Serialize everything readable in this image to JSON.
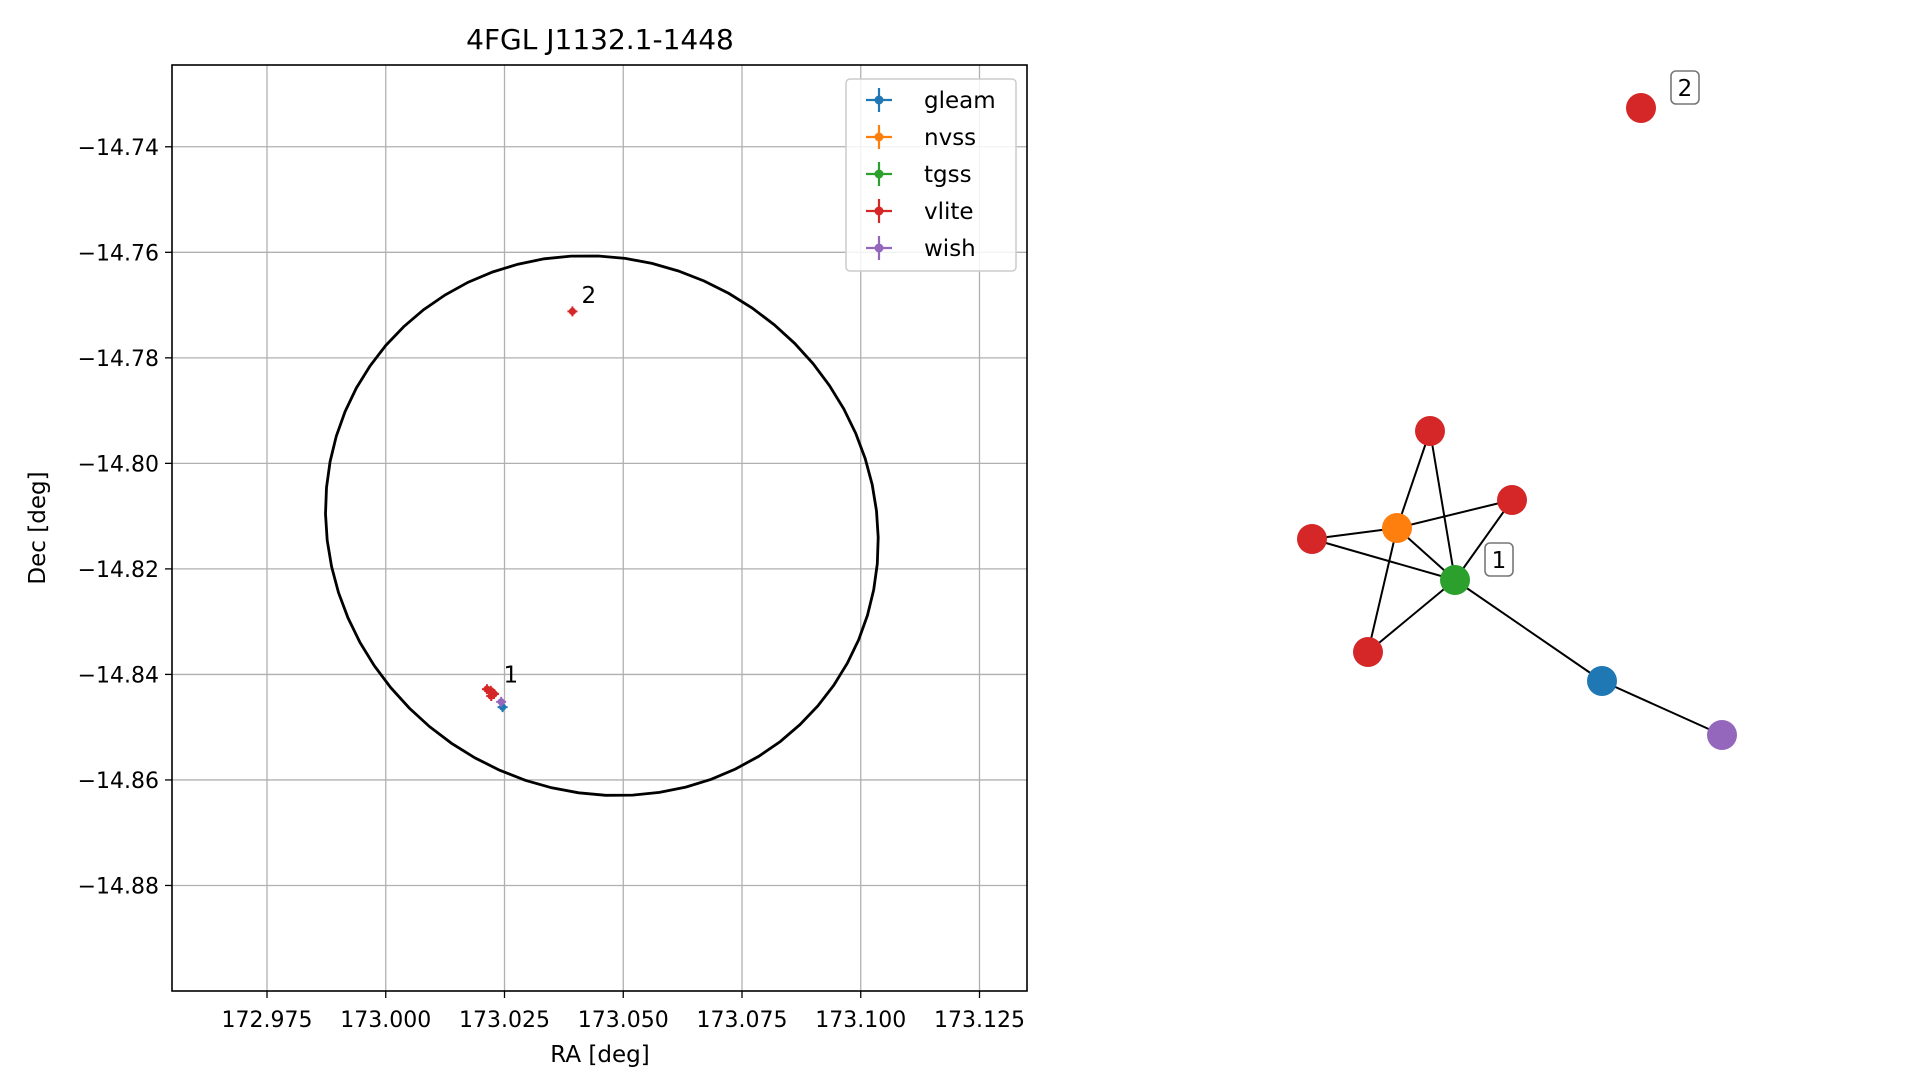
{
  "chart_data": [
    {
      "type": "scatter",
      "title": "4FGL J1132.1-1448",
      "xlabel": "RA [deg]",
      "ylabel": "Dec [deg]",
      "xlim": [
        172.955,
        173.135
      ],
      "ylim": [
        -14.9,
        -14.7245
      ],
      "grid": true,
      "legend_placement": "top-right",
      "xticks": [
        172.975,
        173.0,
        173.025,
        173.05,
        173.075,
        173.1,
        173.125
      ],
      "xtick_labels": [
        "172.975",
        "173.000",
        "173.025",
        "173.050",
        "173.075",
        "173.100",
        "173.125"
      ],
      "yticks": [
        -14.74,
        -14.76,
        -14.78,
        -14.8,
        -14.82,
        -14.84,
        -14.86,
        -14.88
      ],
      "ytick_labels": [
        "−14.74",
        "−14.76",
        "−14.78",
        "−14.80",
        "−14.82",
        "−14.84",
        "−14.86",
        "−14.88"
      ],
      "series": [
        {
          "name": "gleam",
          "color": "#1f77b4",
          "points": [
            {
              "x": 173.0246,
              "y": -14.8462
            }
          ]
        },
        {
          "name": "nvss",
          "color": "#ff7f0e",
          "points": [
            {
              "x": 173.0224,
              "y": -14.8434
            }
          ]
        },
        {
          "name": "tgss",
          "color": "#2ca02c",
          "points": [
            {
              "x": 173.0226,
              "y": -14.8436
            }
          ]
        },
        {
          "name": "vlite",
          "color": "#d62728",
          "points": [
            {
              "x": 173.0213,
              "y": -14.8428
            },
            {
              "x": 173.0221,
              "y": -14.8431
            },
            {
              "x": 173.0228,
              "y": -14.8437
            },
            {
              "x": 173.0222,
              "y": -14.8441
            },
            {
              "x": 173.0393,
              "y": -14.7712
            }
          ]
        },
        {
          "name": "wish",
          "color": "#9467bd",
          "points": [
            {
              "x": 173.0243,
              "y": -14.8452
            }
          ]
        }
      ],
      "error_ellipse": {
        "center_x": 173.0455,
        "center_y": -14.8118,
        "semi_x": 0.0585,
        "semi_y": 0.0508,
        "rotation_deg": -12
      },
      "annotations": [
        {
          "text": "1",
          "x": 173.0248,
          "y": -14.8415
        },
        {
          "text": "2",
          "x": 173.0412,
          "y": -14.7696
        }
      ]
    },
    {
      "type": "network",
      "nodes": [
        {
          "id": "vlite-a",
          "catalog": "vlite",
          "color": "#d62728"
        },
        {
          "id": "vlite-b",
          "catalog": "vlite",
          "color": "#d62728"
        },
        {
          "id": "vlite-c",
          "catalog": "vlite",
          "color": "#d62728"
        },
        {
          "id": "vlite-d",
          "catalog": "vlite",
          "color": "#d62728"
        },
        {
          "id": "nvss",
          "catalog": "nvss",
          "color": "#ff7f0e"
        },
        {
          "id": "tgss",
          "catalog": "tgss",
          "color": "#2ca02c"
        },
        {
          "id": "gleam",
          "catalog": "gleam",
          "color": "#1f77b4"
        },
        {
          "id": "wish",
          "catalog": "wish",
          "color": "#9467bd"
        },
        {
          "id": "vlite-e",
          "catalog": "vlite",
          "color": "#d62728"
        }
      ],
      "edges": [
        [
          "vlite-a",
          "nvss"
        ],
        [
          "vlite-a",
          "tgss"
        ],
        [
          "vlite-b",
          "nvss"
        ],
        [
          "vlite-b",
          "tgss"
        ],
        [
          "vlite-c",
          "nvss"
        ],
        [
          "vlite-c",
          "tgss"
        ],
        [
          "vlite-d",
          "nvss"
        ],
        [
          "vlite-d",
          "tgss"
        ],
        [
          "nvss",
          "tgss"
        ],
        [
          "tgss",
          "gleam"
        ],
        [
          "gleam",
          "wish"
        ]
      ],
      "labels": [
        {
          "text": "1",
          "node": "tgss"
        },
        {
          "text": "2",
          "node": "vlite-e"
        }
      ]
    }
  ]
}
